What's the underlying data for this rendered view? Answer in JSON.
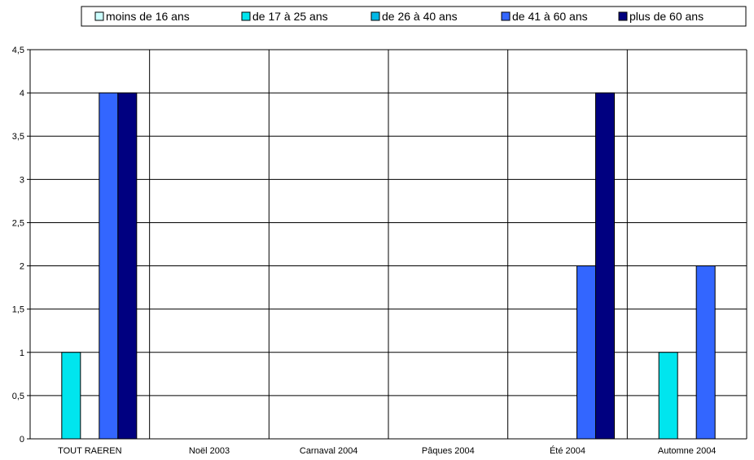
{
  "chart_data": {
    "type": "bar",
    "categories": [
      "TOUT RAEREN",
      "Noël 2003",
      "Carnaval 2004",
      "Pâques 2004",
      "Été 2004",
      "Automne 2004"
    ],
    "series": [
      {
        "name": "moins de 16 ans",
        "values": [
          0,
          0,
          0,
          0,
          0,
          0
        ],
        "color": "#ccffff"
      },
      {
        "name": "de 17 à 25 ans",
        "values": [
          1,
          0,
          0,
          0,
          0,
          1
        ],
        "color": "#00e5ee"
      },
      {
        "name": "de 26 à 40 ans",
        "values": [
          0,
          0,
          0,
          0,
          0,
          0
        ],
        "color": "#00b8e6"
      },
      {
        "name": "de 41 à 60 ans",
        "values": [
          4,
          0,
          0,
          0,
          2,
          2
        ],
        "color": "#3366ff"
      },
      {
        "name": "plus de 60 ans",
        "values": [
          4,
          0,
          0,
          0,
          4,
          0
        ],
        "color": "#000080"
      }
    ],
    "ylim": [
      0,
      4.5
    ],
    "yticks": [
      "0",
      "0,5",
      "1",
      "1,5",
      "2",
      "2,5",
      "3",
      "3,5",
      "4",
      "4,5"
    ],
    "grid": true,
    "legend": "top"
  }
}
